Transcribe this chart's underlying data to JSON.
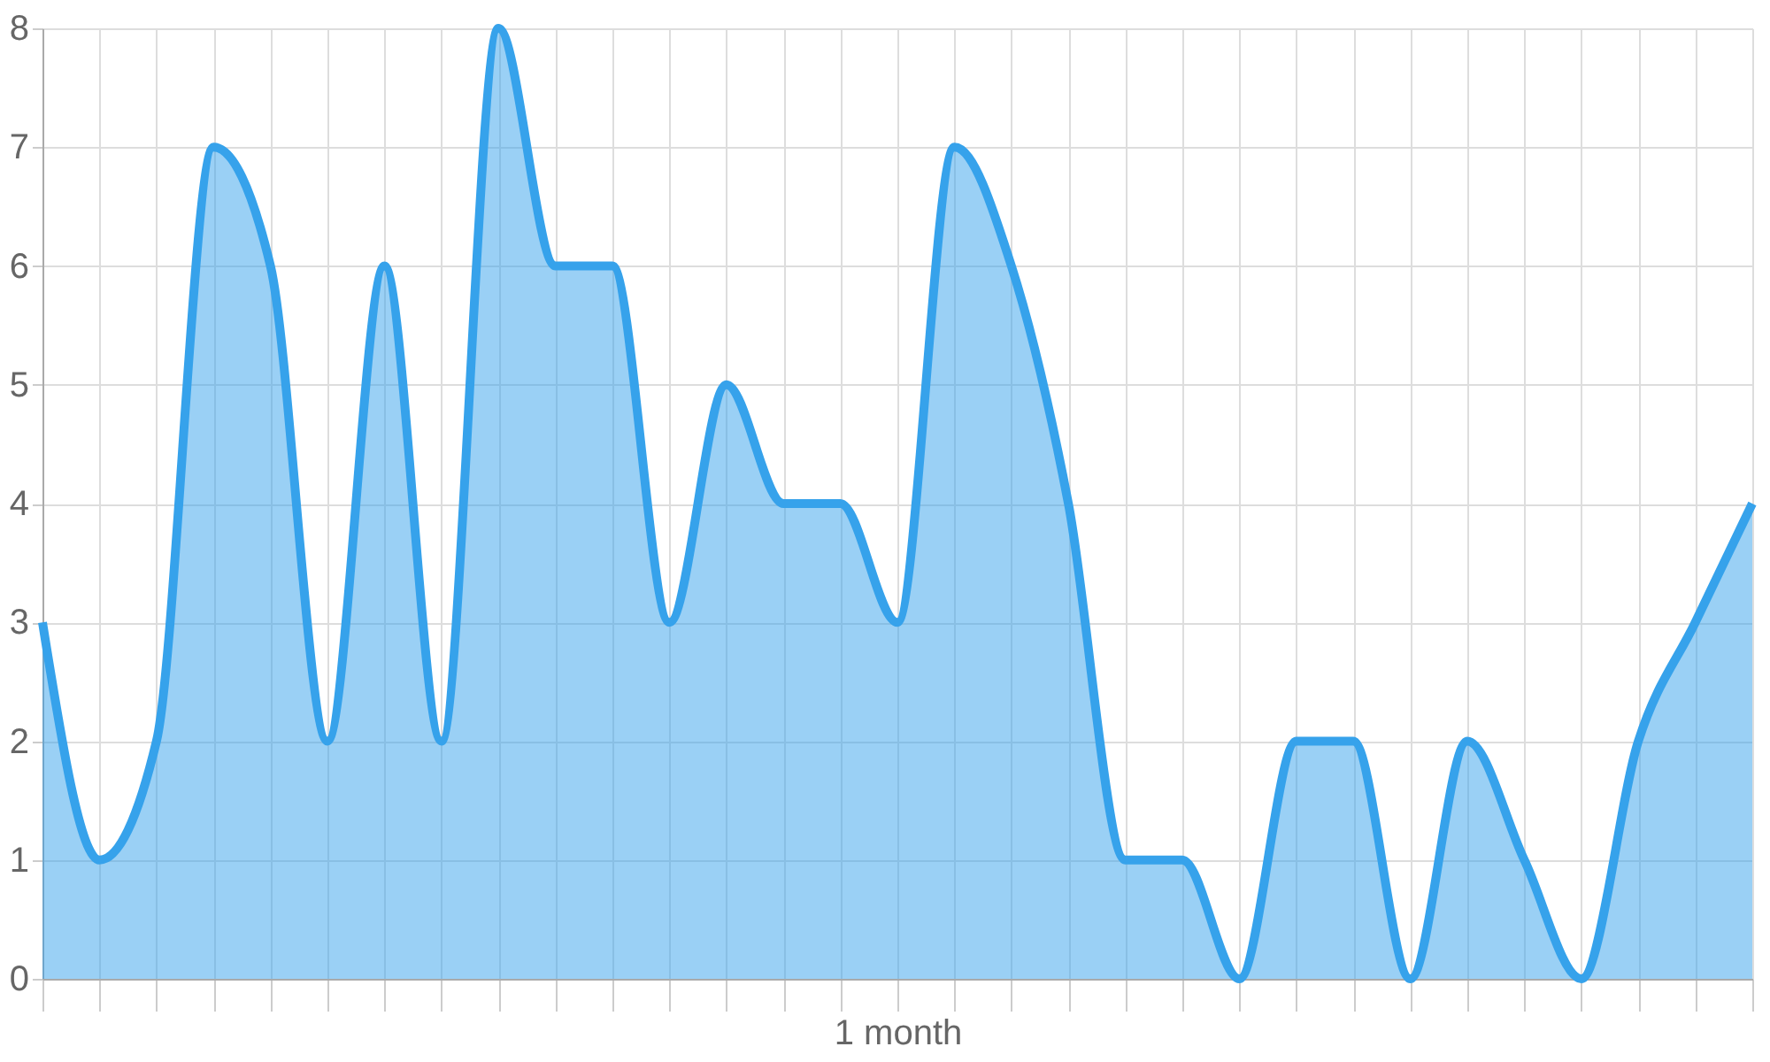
{
  "chart_data": {
    "type": "area",
    "xlabel": "1 month",
    "categories": [
      null,
      null,
      null,
      null,
      null,
      null,
      null,
      null,
      null,
      null,
      null,
      null,
      null,
      null,
      null,
      null,
      null,
      null,
      null,
      null,
      null,
      null,
      null,
      null,
      null,
      null,
      null,
      null,
      null,
      null,
      null
    ],
    "series": [
      {
        "color": "#36a2eb",
        "values": [
          3,
          1,
          2,
          7,
          6,
          2,
          6,
          2,
          8,
          6,
          6,
          3,
          5,
          4,
          4,
          3,
          7,
          6,
          4,
          1,
          1,
          0,
          2,
          2,
          0,
          2,
          1,
          0,
          2,
          3,
          4
        ]
      }
    ],
    "ylim": [
      0,
      8
    ],
    "yticks": [
      0,
      1,
      2,
      3,
      4,
      5,
      6,
      7,
      8
    ],
    "grid": true
  }
}
